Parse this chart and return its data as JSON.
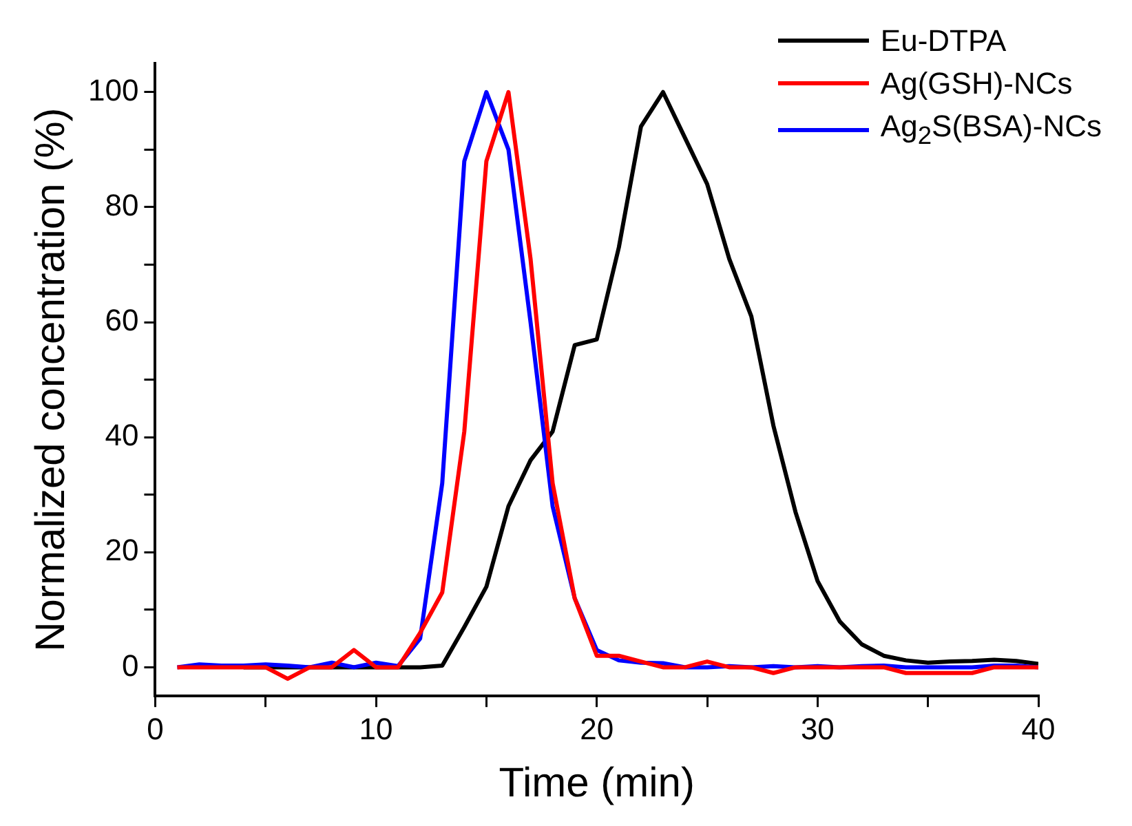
{
  "chart_data": {
    "type": "line",
    "xlabel": "Time (min)",
    "ylabel": "Normalized concentration (%)",
    "x": [
      1,
      2,
      3,
      4,
      5,
      6,
      7,
      8,
      9,
      10,
      11,
      12,
      13,
      14,
      15,
      16,
      17,
      18,
      19,
      20,
      21,
      22,
      23,
      24,
      25,
      26,
      27,
      28,
      29,
      30,
      31,
      32,
      33,
      34,
      35,
      36,
      37,
      38,
      39,
      40
    ],
    "series": [
      {
        "name": "Eu-DTPA",
        "color": "#000000",
        "values": [
          null,
          null,
          null,
          0,
          0,
          0,
          0,
          0,
          0,
          0,
          0,
          0,
          0.3,
          7,
          14,
          28,
          36,
          41,
          56,
          57,
          73,
          94,
          100,
          92,
          84,
          71,
          61,
          42,
          27,
          15,
          8,
          4,
          2,
          1.2,
          0.8,
          1,
          1.1,
          1.3,
          1.1,
          0.6
        ]
      },
      {
        "name": "Ag(GSH)-NCs",
        "color": "#ff0000",
        "values": [
          0,
          0,
          0,
          0,
          0,
          -2,
          0,
          0,
          3,
          0,
          0,
          6,
          13,
          41,
          88,
          100,
          71,
          32,
          12,
          2,
          2,
          1,
          0,
          0,
          1,
          0,
          0,
          -1,
          0,
          0,
          0,
          0,
          0,
          -1,
          -1,
          -1,
          -1,
          0,
          0,
          0
        ]
      },
      {
        "name": "Ag$_{2}$S(BSA)-NCs",
        "color": "#0000ff",
        "values": [
          0,
          0.5,
          0.3,
          0.3,
          0.5,
          0.3,
          0,
          0.8,
          0,
          0.8,
          0.2,
          5,
          32,
          88,
          100,
          90,
          60,
          28,
          12,
          3,
          1.2,
          0.8,
          0.7,
          0,
          0,
          0.2,
          0,
          0.2,
          0,
          0.2,
          0,
          0.2,
          0.3,
          0,
          0,
          0,
          0,
          0.3,
          0.3,
          0
        ]
      }
    ],
    "xlim": [
      0,
      40
    ],
    "xticks": [
      0,
      {
        "value": 5,
        "label": null
      },
      10,
      {
        "value": 15,
        "label": null
      },
      20,
      {
        "value": 25,
        "label": null
      },
      30,
      {
        "value": 35,
        "label": null
      },
      40
    ],
    "ylim": [
      -5,
      105
    ],
    "yticks": [
      0,
      {
        "value": 10,
        "label": null
      },
      20,
      {
        "value": 30,
        "label": null
      },
      40,
      {
        "value": 50,
        "label": null
      },
      60,
      {
        "value": 70,
        "label": null
      },
      80,
      {
        "value": 90,
        "label": null
      },
      100
    ],
    "grid": false,
    "legend": "top right",
    "marker": "none",
    "line_style": "solid"
  }
}
